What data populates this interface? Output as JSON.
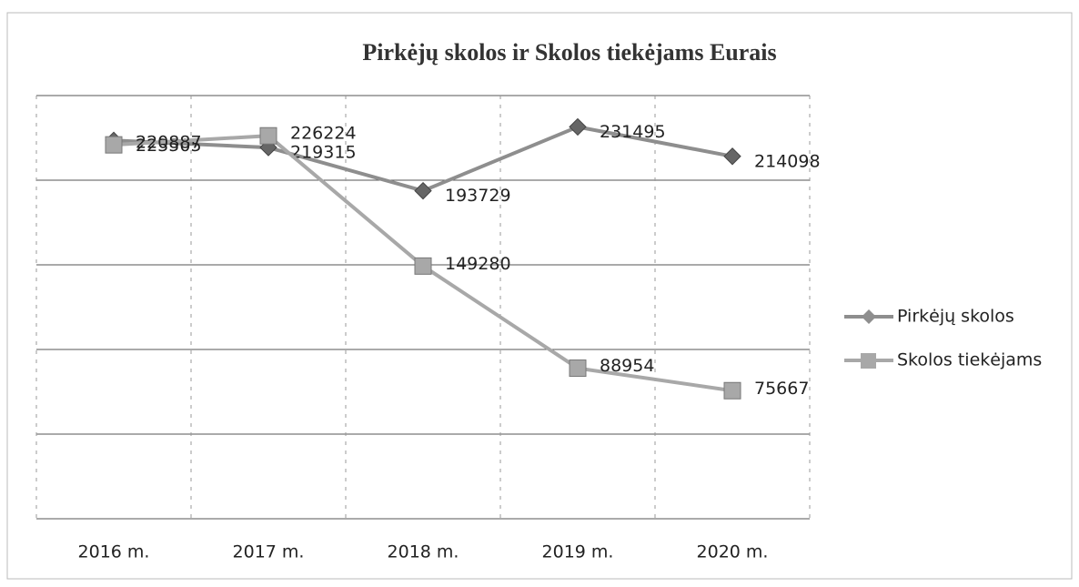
{
  "chart_data": {
    "type": "line",
    "title": "Pirkėjų skolos ir Skolos tiekėjams Eurais",
    "categories": [
      "2016 m.",
      "2017 m.",
      "2018 m.",
      "2019 m.",
      "2020 m."
    ],
    "series": [
      {
        "name": "Pirkėjų skolos",
        "color": "#8e8e8e",
        "marker": "diamond",
        "values": [
          223505,
          219315,
          193729,
          231495,
          214098
        ]
      },
      {
        "name": "Skolos tiekėjams",
        "color": "#a8a8a8",
        "marker": "square",
        "values": [
          220887,
          226224,
          149280,
          88954,
          75667
        ]
      }
    ],
    "ylim": [
      0,
      250000
    ],
    "yticks": [
      0,
      50000,
      100000,
      150000,
      200000,
      250000
    ],
    "grid": true,
    "legend": "right"
  }
}
